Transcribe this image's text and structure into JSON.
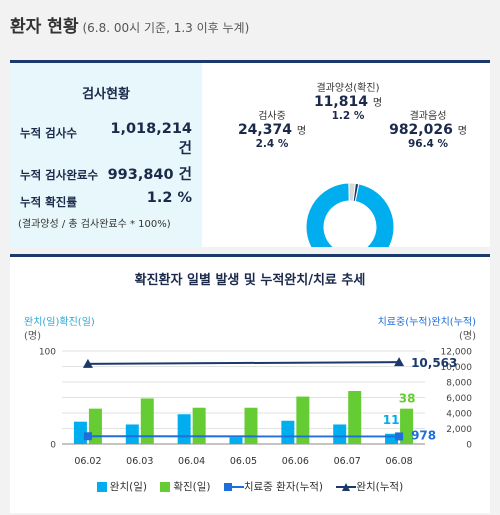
{
  "header": {
    "title": "환자 현황",
    "subtitle": "(6.8. 00시 기준, 1.3 이후 누계)"
  },
  "test_status": {
    "title": "검사현황",
    "rows": [
      {
        "label": "누적 검사수",
        "value": "1,018,214",
        "unit": "건"
      },
      {
        "label": "누적 검사완료수",
        "value": "993,840 건"
      },
      {
        "label": "누적 확진률",
        "value": "1.2 %"
      }
    ],
    "note": "(결과양성 / 총 검사완료수 * 100%)"
  },
  "pie": {
    "positive": {
      "label": "결과양성(확진)",
      "value": "11,814",
      "unit": "명",
      "pct": "1.2 %"
    },
    "testing": {
      "label": "검사중",
      "value": "24,374",
      "unit": "명",
      "pct": "2.4 %"
    },
    "negative": {
      "label": "결과음성",
      "value": "982,026",
      "unit": "명",
      "pct": "96.4 %"
    },
    "colors": {
      "negative": "#00aeef",
      "positive": "#1b3a6b",
      "testing": "#d8d8d8"
    }
  },
  "chart_data": {
    "type": "bar",
    "title": "확진환자 일별 발생 및 누적완치/치료 추세",
    "left_axis_label": "완치(일)확진(일)",
    "left_axis_unit": "(명)",
    "right_axis_label": "치료중(누적)완치(누적)",
    "right_axis_unit": "(명)",
    "left_ylim": [
      0,
      100
    ],
    "left_ticks": [
      "0",
      "100"
    ],
    "right_ylim": [
      0,
      12000
    ],
    "right_ticks": [
      "0",
      "2,000",
      "4,000",
      "6,000",
      "8,000",
      "10,000",
      "12,000"
    ],
    "categories": [
      "06.02",
      "06.03",
      "06.04",
      "06.05",
      "06.06",
      "06.07",
      "06.08"
    ],
    "series": [
      {
        "name": "완치(일)",
        "type": "bar",
        "axis": "left",
        "color": "#00aeef",
        "values": [
          24,
          21,
          32,
          7,
          25,
          21,
          11
        ]
      },
      {
        "name": "확진(일)",
        "type": "bar",
        "axis": "left",
        "color": "#66cc33",
        "values": [
          38,
          49,
          39,
          39,
          51,
          57,
          38
        ]
      },
      {
        "name": "치료중 환자(누적)",
        "type": "line",
        "axis": "right",
        "color": "#1e6fd9",
        "values": [
          1000,
          1010,
          1008,
          1020,
          1030,
          1040,
          978
        ]
      },
      {
        "name": "완치(누적)",
        "type": "line",
        "axis": "right",
        "color": "#1b3a6b",
        "values": [
          10340,
          10362,
          10398,
          10405,
          10447,
          10552,
          10563
        ]
      }
    ],
    "annotations": {
      "bar_confirmed_last": "38",
      "bar_recovered_last": "11",
      "line_recovered_last": "10,563",
      "line_treating_last": "978"
    }
  }
}
